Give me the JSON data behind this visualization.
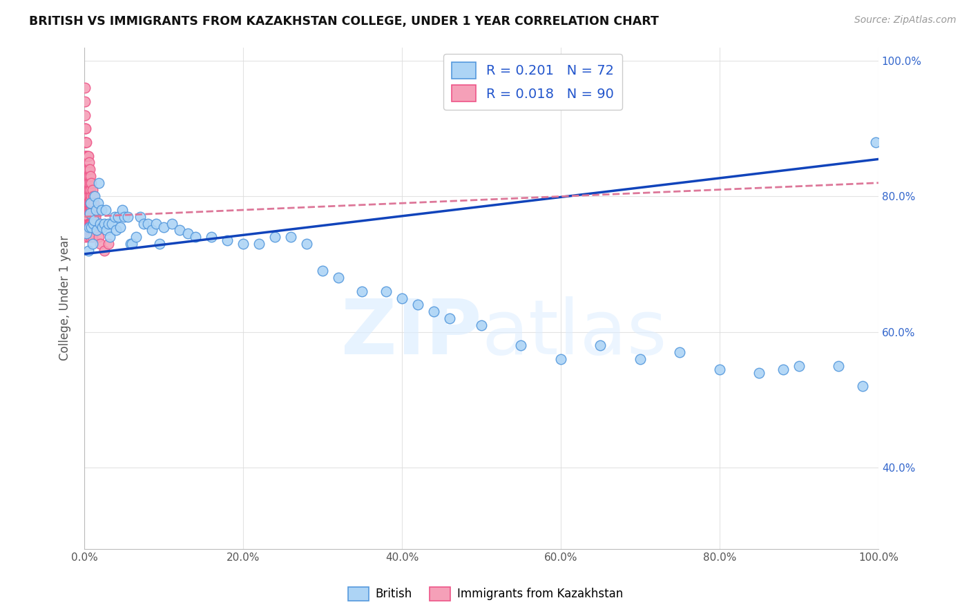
{
  "title": "BRITISH VS IMMIGRANTS FROM KAZAKHSTAN COLLEGE, UNDER 1 YEAR CORRELATION CHART",
  "source": "Source: ZipAtlas.com",
  "ylabel": "College, Under 1 year",
  "legend_R1": "0.201",
  "legend_N1": "72",
  "legend_R2": "0.018",
  "legend_N2": "90",
  "british_color": "#add4f5",
  "kazakhstan_color": "#f5a0b8",
  "british_edge": "#5599dd",
  "kazakhstan_edge": "#ee5588",
  "trendline1_color": "#1144bb",
  "trendline2_color": "#dd7799",
  "trendline2_style": "--",
  "background_color": "#ffffff",
  "grid_color": "#dddddd",
  "watermark_color": "#ddeeff",
  "british_x": [
    0.003,
    0.005,
    0.006,
    0.007,
    0.008,
    0.009,
    0.01,
    0.011,
    0.012,
    0.013,
    0.015,
    0.016,
    0.017,
    0.018,
    0.02,
    0.022,
    0.023,
    0.025,
    0.027,
    0.028,
    0.03,
    0.032,
    0.035,
    0.038,
    0.04,
    0.043,
    0.045,
    0.048,
    0.05,
    0.055,
    0.058,
    0.06,
    0.065,
    0.07,
    0.075,
    0.08,
    0.085,
    0.09,
    0.095,
    0.1,
    0.11,
    0.12,
    0.13,
    0.14,
    0.16,
    0.18,
    0.2,
    0.22,
    0.24,
    0.26,
    0.28,
    0.3,
    0.32,
    0.35,
    0.38,
    0.4,
    0.42,
    0.44,
    0.46,
    0.5,
    0.55,
    0.6,
    0.65,
    0.7,
    0.75,
    0.8,
    0.85,
    0.88,
    0.9,
    0.95,
    0.98,
    0.997
  ],
  "british_y": [
    0.745,
    0.72,
    0.755,
    0.775,
    0.79,
    0.755,
    0.73,
    0.76,
    0.765,
    0.8,
    0.78,
    0.75,
    0.79,
    0.82,
    0.76,
    0.78,
    0.755,
    0.76,
    0.78,
    0.75,
    0.76,
    0.74,
    0.76,
    0.77,
    0.75,
    0.77,
    0.755,
    0.78,
    0.77,
    0.77,
    0.73,
    0.73,
    0.74,
    0.77,
    0.76,
    0.76,
    0.75,
    0.76,
    0.73,
    0.755,
    0.76,
    0.75,
    0.745,
    0.74,
    0.74,
    0.735,
    0.73,
    0.73,
    0.74,
    0.74,
    0.73,
    0.69,
    0.68,
    0.66,
    0.66,
    0.65,
    0.64,
    0.63,
    0.62,
    0.61,
    0.58,
    0.56,
    0.58,
    0.56,
    0.57,
    0.545,
    0.54,
    0.545,
    0.55,
    0.55,
    0.52,
    0.88
  ],
  "kazakhstan_x": [
    0.001,
    0.001,
    0.001,
    0.001,
    0.001,
    0.001,
    0.001,
    0.001,
    0.001,
    0.001,
    0.001,
    0.002,
    0.002,
    0.002,
    0.002,
    0.002,
    0.002,
    0.002,
    0.002,
    0.002,
    0.003,
    0.003,
    0.003,
    0.003,
    0.003,
    0.003,
    0.003,
    0.003,
    0.003,
    0.003,
    0.004,
    0.004,
    0.004,
    0.004,
    0.004,
    0.004,
    0.004,
    0.004,
    0.005,
    0.005,
    0.005,
    0.005,
    0.005,
    0.005,
    0.005,
    0.005,
    0.005,
    0.005,
    0.006,
    0.006,
    0.006,
    0.006,
    0.006,
    0.006,
    0.007,
    0.007,
    0.007,
    0.007,
    0.007,
    0.007,
    0.008,
    0.008,
    0.008,
    0.008,
    0.008,
    0.008,
    0.009,
    0.009,
    0.009,
    0.009,
    0.01,
    0.01,
    0.01,
    0.01,
    0.01,
    0.01,
    0.011,
    0.011,
    0.011,
    0.012,
    0.012,
    0.013,
    0.013,
    0.014,
    0.015,
    0.016,
    0.018,
    0.02,
    0.025,
    0.03
  ],
  "kazakhstan_y": [
    0.96,
    0.94,
    0.92,
    0.9,
    0.88,
    0.86,
    0.84,
    0.82,
    0.8,
    0.78,
    0.76,
    0.9,
    0.88,
    0.86,
    0.84,
    0.82,
    0.8,
    0.78,
    0.76,
    0.74,
    0.88,
    0.86,
    0.84,
    0.82,
    0.8,
    0.79,
    0.78,
    0.77,
    0.76,
    0.75,
    0.86,
    0.84,
    0.82,
    0.8,
    0.79,
    0.78,
    0.77,
    0.76,
    0.86,
    0.84,
    0.82,
    0.8,
    0.79,
    0.78,
    0.77,
    0.76,
    0.75,
    0.74,
    0.85,
    0.83,
    0.81,
    0.79,
    0.78,
    0.76,
    0.84,
    0.82,
    0.8,
    0.79,
    0.78,
    0.76,
    0.83,
    0.81,
    0.795,
    0.78,
    0.76,
    0.74,
    0.82,
    0.8,
    0.78,
    0.76,
    0.81,
    0.79,
    0.78,
    0.77,
    0.76,
    0.74,
    0.8,
    0.79,
    0.78,
    0.79,
    0.77,
    0.78,
    0.76,
    0.77,
    0.76,
    0.75,
    0.74,
    0.73,
    0.72,
    0.73
  ],
  "xlim": [
    0,
    1.0
  ],
  "ylim": [
    0.28,
    1.02
  ],
  "xticks": [
    0.0,
    0.2,
    0.4,
    0.6,
    0.8,
    1.0
  ],
  "xticklabels": [
    "0.0%",
    "20.0%",
    "40.0%",
    "60.0%",
    "80.0%",
    "100.0%"
  ],
  "yticks_right": [
    0.4,
    0.6,
    0.8,
    1.0
  ],
  "yticklabels_right": [
    "40.0%",
    "60.0%",
    "80.0%",
    "100.0%"
  ]
}
